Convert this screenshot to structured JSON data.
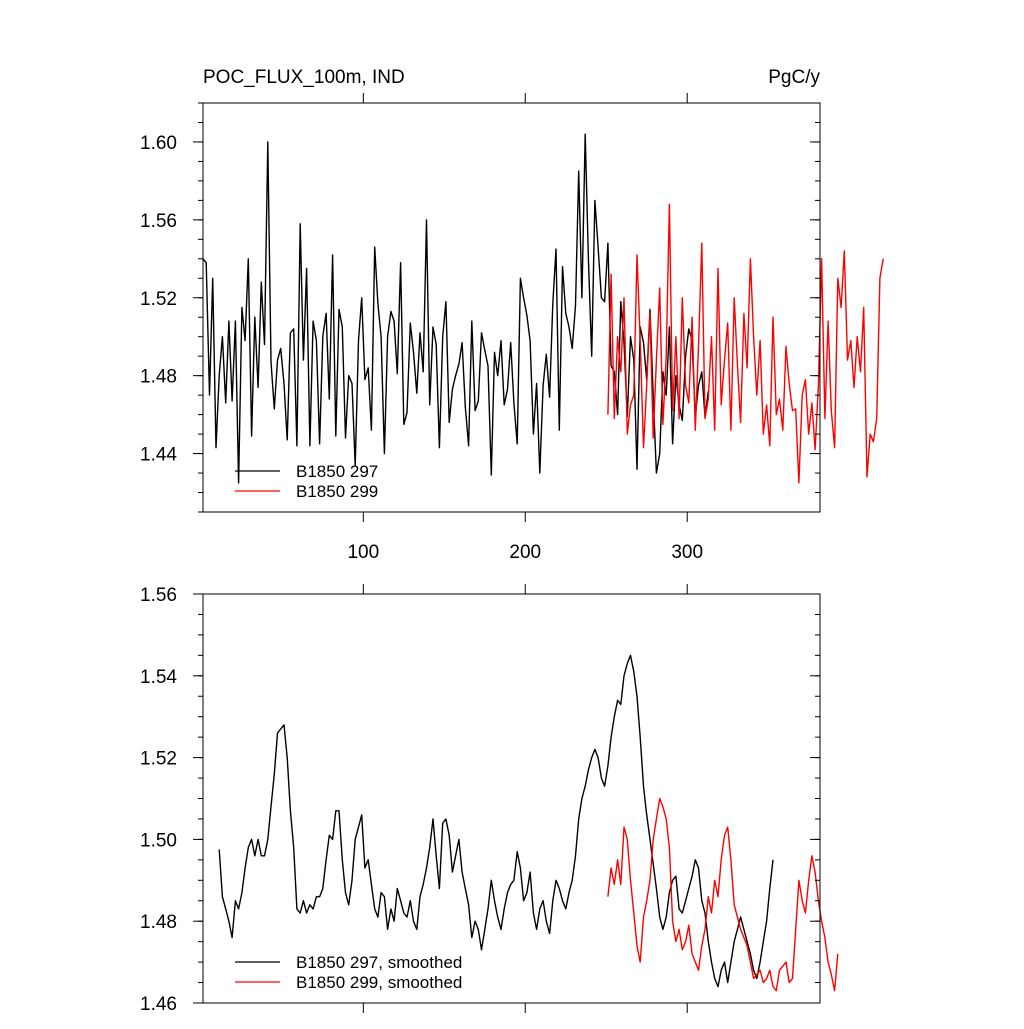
{
  "chart_data": [
    {
      "type": "line",
      "title": "POC_FLUX_100m, IND",
      "units": "PgC/y",
      "xlim": [
        1,
        382
      ],
      "ylim": [
        1.41,
        1.62
      ],
      "xticks": [
        100,
        200,
        300
      ],
      "yticks": [
        1.44,
        1.48,
        1.52,
        1.56,
        1.6
      ],
      "ytick_labels": [
        "1.44",
        "1.48",
        "1.52",
        "1.56",
        "1.60"
      ],
      "grid": false,
      "legend_position": "bottom-left",
      "series": [
        {
          "name": "B1850 297",
          "color": "#000000",
          "x_start": 1,
          "x_step": 2,
          "values": [
            1.54,
            1.538,
            1.47,
            1.53,
            1.443,
            1.48,
            1.5,
            1.466,
            1.508,
            1.467,
            1.508,
            1.425,
            1.515,
            1.498,
            1.54,
            1.449,
            1.51,
            1.474,
            1.528,
            1.496,
            1.6,
            1.487,
            1.463,
            1.488,
            1.494,
            1.476,
            1.447,
            1.502,
            1.504,
            1.444,
            1.558,
            1.488,
            1.535,
            1.444,
            1.508,
            1.498,
            1.445,
            1.5,
            1.512,
            1.468,
            1.542,
            1.449,
            1.514,
            1.505,
            1.448,
            1.48,
            1.476,
            1.434,
            1.498,
            1.52,
            1.478,
            1.484,
            1.452,
            1.546,
            1.517,
            1.5,
            1.44,
            1.5,
            1.513,
            1.508,
            1.481,
            1.538,
            1.455,
            1.461,
            1.507,
            1.492,
            1.471,
            1.502,
            1.482,
            1.56,
            1.465,
            1.505,
            1.496,
            1.443,
            1.5,
            1.518,
            1.456,
            1.473,
            1.48,
            1.486,
            1.497,
            1.464,
            1.444,
            1.508,
            1.462,
            1.467,
            1.502,
            1.493,
            1.485,
            1.429,
            1.492,
            1.48,
            1.498,
            1.465,
            1.473,
            1.497,
            1.466,
            1.445,
            1.53,
            1.52,
            1.511,
            1.498,
            1.45,
            1.476,
            1.43,
            1.475,
            1.491,
            1.469,
            1.517,
            1.545,
            1.452,
            1.536,
            1.512,
            1.505,
            1.494,
            1.516,
            1.585,
            1.52,
            1.604,
            1.54,
            1.49,
            1.57,
            1.546,
            1.52,
            1.518,
            1.548,
            1.485,
            1.482,
            1.46,
            1.518,
            1.497,
            1.459,
            1.5,
            1.488,
            1.432,
            1.505,
            1.497,
            1.478,
            1.514,
            1.47,
            1.43,
            1.44,
            1.482,
            1.47,
            1.505,
            1.445,
            1.48,
            1.465,
            1.457,
            1.49,
            1.504,
            1.498,
            1.459,
            1.475,
            1.482,
            1.459,
            1.472
          ]
        },
        {
          "name": "B1850 299",
          "color": "#ff0000",
          "x_start": 251,
          "x_step": 2,
          "values": [
            1.46,
            1.532,
            1.458,
            1.5,
            1.482,
            1.52,
            1.45,
            1.465,
            1.47,
            1.542,
            1.498,
            1.443,
            1.475,
            1.512,
            1.448,
            1.488,
            1.525,
            1.455,
            1.49,
            1.568,
            1.462,
            1.5,
            1.458,
            1.52,
            1.475,
            1.466,
            1.51,
            1.452,
            1.495,
            1.548,
            1.458,
            1.468,
            1.5,
            1.452,
            1.535,
            1.465,
            1.488,
            1.507,
            1.452,
            1.52,
            1.486,
            1.456,
            1.512,
            1.484,
            1.54,
            1.5,
            1.47,
            1.498,
            1.45,
            1.465,
            1.444,
            1.51,
            1.46,
            1.468,
            1.452,
            1.495,
            1.476,
            1.462,
            1.463,
            1.425,
            1.47,
            1.478,
            1.45,
            1.466,
            1.442,
            1.475,
            1.54,
            1.458,
            1.508,
            1.462,
            1.443,
            1.53,
            1.515,
            1.544,
            1.488,
            1.498,
            1.474,
            1.5,
            1.482,
            1.515,
            1.428,
            1.45,
            1.446,
            1.458,
            1.53,
            1.54
          ]
        }
      ]
    },
    {
      "type": "line",
      "xlim": [
        1,
        382
      ],
      "ylim": [
        1.46,
        1.56
      ],
      "xticks": [
        100,
        200,
        300
      ],
      "yticks": [
        1.46,
        1.48,
        1.5,
        1.52,
        1.54,
        1.56
      ],
      "ytick_labels": [
        "1.46",
        "1.48",
        "1.50",
        "1.52",
        "1.54",
        "1.56"
      ],
      "grid": false,
      "legend_position": "bottom-left",
      "series": [
        {
          "name": "B1850 297, smoothed",
          "color": "#000000",
          "x_start": 11,
          "x_step": 2,
          "values": [
            1.4975,
            1.486,
            1.483,
            1.48,
            1.476,
            1.485,
            1.483,
            1.487,
            1.493,
            1.498,
            1.5,
            1.496,
            1.5,
            1.496,
            1.496,
            1.5,
            1.508,
            1.516,
            1.526,
            1.527,
            1.528,
            1.52,
            1.507,
            1.498,
            1.483,
            1.482,
            1.485,
            1.482,
            1.484,
            1.483,
            1.486,
            1.486,
            1.488,
            1.495,
            1.501,
            1.5,
            1.507,
            1.507,
            1.495,
            1.487,
            1.484,
            1.49,
            1.5,
            1.503,
            1.506,
            1.493,
            1.495,
            1.489,
            1.483,
            1.481,
            1.487,
            1.486,
            1.478,
            1.483,
            1.48,
            1.488,
            1.485,
            1.482,
            1.481,
            1.485,
            1.48,
            1.478,
            1.486,
            1.489,
            1.493,
            1.498,
            1.505,
            1.496,
            1.488,
            1.504,
            1.505,
            1.501,
            1.492,
            1.496,
            1.5,
            1.492,
            1.488,
            1.484,
            1.476,
            1.48,
            1.478,
            1.473,
            1.478,
            1.483,
            1.49,
            1.485,
            1.481,
            1.478,
            1.483,
            1.487,
            1.489,
            1.49,
            1.497,
            1.493,
            1.485,
            1.487,
            1.492,
            1.482,
            1.478,
            1.483,
            1.485,
            1.48,
            1.477,
            1.485,
            1.49,
            1.488,
            1.485,
            1.483,
            1.487,
            1.49,
            1.496,
            1.505,
            1.51,
            1.513,
            1.517,
            1.52,
            1.522,
            1.52,
            1.515,
            1.513,
            1.518,
            1.525,
            1.53,
            1.534,
            1.533,
            1.54,
            1.543,
            1.545,
            1.541,
            1.535,
            1.525,
            1.513,
            1.506,
            1.5,
            1.494,
            1.488,
            1.481,
            1.478,
            1.481,
            1.487,
            1.49,
            1.491,
            1.483,
            1.482,
            1.485,
            1.488,
            1.491,
            1.495,
            1.493,
            1.485,
            1.482,
            1.475,
            1.47,
            1.466,
            1.464,
            1.468,
            1.47,
            1.465,
            1.47,
            1.475,
            1.478,
            1.481,
            1.478,
            1.475,
            1.472,
            1.468,
            1.466,
            1.47,
            1.475,
            1.48,
            1.488,
            1.495
          ]
        },
        {
          "name": "B1850 299, smoothed",
          "color": "#ff0000",
          "x_start": 251,
          "x_step": 2,
          "values": [
            1.486,
            1.493,
            1.489,
            1.495,
            1.489,
            1.503,
            1.5,
            1.49,
            1.482,
            1.474,
            1.47,
            1.481,
            1.485,
            1.49,
            1.5,
            1.505,
            1.51,
            1.508,
            1.505,
            1.498,
            1.48,
            1.475,
            1.478,
            1.473,
            1.475,
            1.479,
            1.472,
            1.47,
            1.468,
            1.474,
            1.478,
            1.486,
            1.482,
            1.49,
            1.486,
            1.495,
            1.501,
            1.503,
            1.495,
            1.484,
            1.481,
            1.478,
            1.476,
            1.474,
            1.47,
            1.466,
            1.467,
            1.468,
            1.465,
            1.466,
            1.468,
            1.464,
            1.463,
            1.468,
            1.469,
            1.47,
            1.465,
            1.466,
            1.478,
            1.49,
            1.485,
            1.482,
            1.49,
            1.496,
            1.492,
            1.485,
            1.48,
            1.476,
            1.47,
            1.467,
            1.463,
            1.472
          ]
        }
      ]
    }
  ]
}
